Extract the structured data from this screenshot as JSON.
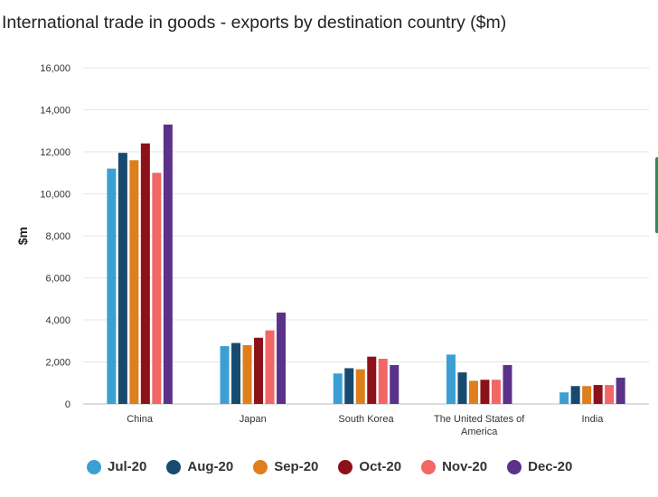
{
  "title": "International trade in goods - exports by destination country ($m)",
  "chart_data": {
    "type": "bar",
    "title": "International trade in goods - exports by destination country ($m)",
    "xlabel": "",
    "ylabel": "$m",
    "ylim": [
      0,
      16000
    ],
    "yticks": [
      0,
      2000,
      4000,
      6000,
      8000,
      10000,
      12000,
      14000,
      16000
    ],
    "ytick_labels": [
      "0",
      "2,000",
      "4,000",
      "6,000",
      "8,000",
      "10,000",
      "12,000",
      "14,000",
      "16,000"
    ],
    "categories": [
      "China",
      "Japan",
      "South Korea",
      "The United States of America",
      "India"
    ],
    "category_lines": [
      [
        "China"
      ],
      [
        "Japan"
      ],
      [
        "South Korea"
      ],
      [
        "The United States of",
        "America"
      ],
      [
        "India"
      ]
    ],
    "grid": true,
    "legend_position": "bottom",
    "series": [
      {
        "name": "Jul-20",
        "color": "#3c9fd4",
        "values": [
          11200,
          2750,
          1450,
          2350,
          550
        ]
      },
      {
        "name": "Aug-20",
        "color": "#174a6e",
        "values": [
          11950,
          2900,
          1700,
          1500,
          850
        ]
      },
      {
        "name": "Sep-20",
        "color": "#de7f1c",
        "values": [
          11600,
          2800,
          1650,
          1100,
          850
        ]
      },
      {
        "name": "Oct-20",
        "color": "#8b1218",
        "values": [
          12400,
          3150,
          2250,
          1150,
          900
        ]
      },
      {
        "name": "Nov-20",
        "color": "#f26666",
        "values": [
          11000,
          3500,
          2150,
          1150,
          900
        ]
      },
      {
        "name": "Dec-20",
        "color": "#5b3289",
        "values": [
          13300,
          4350,
          1850,
          1850,
          1250
        ]
      }
    ]
  }
}
